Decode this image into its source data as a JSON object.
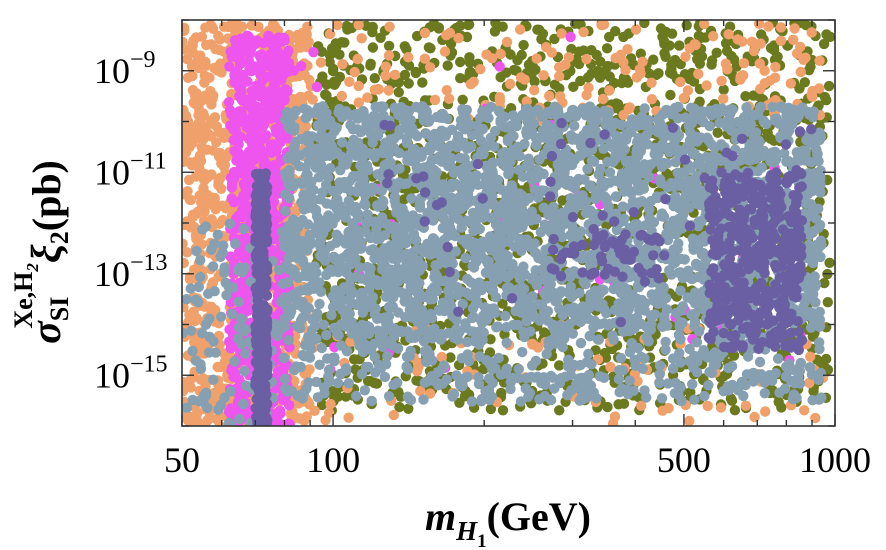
{
  "chart_data": {
    "type": "scatter",
    "title": "",
    "xlabel": {
      "main": "m",
      "sub": "H",
      "subsub": "1",
      "unit": "(GeV)"
    },
    "ylabel": {
      "main": "σ",
      "sub": "SI",
      "sup": "Xe,H",
      "supsub": "2",
      "factor": "ξ",
      "factor_sub": "2",
      "unit": "(pb)"
    },
    "x_scale": "log",
    "y_scale": "log",
    "xlim": [
      50,
      1000
    ],
    "ylim": [
      1e-16,
      1e-08
    ],
    "x_ticks": [
      {
        "value": 50,
        "label": "50"
      },
      {
        "value": 100,
        "label": "100"
      },
      {
        "value": 500,
        "label": "500"
      },
      {
        "value": 1000,
        "label": "1000"
      }
    ],
    "y_ticks": [
      {
        "value": 1e-09,
        "base": "10",
        "exp": "−9"
      },
      {
        "value": 1e-11,
        "base": "10",
        "exp": "−11"
      },
      {
        "value": 1e-13,
        "base": "10",
        "exp": "−13"
      },
      {
        "value": 1e-15,
        "base": "10",
        "exp": "−15"
      }
    ],
    "series": [
      {
        "name": "olive",
        "color": "#6b7a1e",
        "regions": [
          {
            "x": [
              92,
              980
            ],
            "y": [
              2e-16,
              9e-09
            ],
            "n": 1500
          }
        ]
      },
      {
        "name": "orange",
        "color": "#f0a06a",
        "regions": [
          {
            "x": [
              50,
              90
            ],
            "y": [
              1e-16,
              9e-09
            ],
            "n": 900
          },
          {
            "x": [
              90,
              950
            ],
            "y": [
              1e-10,
              9e-09
            ],
            "n": 160
          },
          {
            "x": [
              90,
              950
            ],
            "y": [
              1e-16,
              1e-14
            ],
            "n": 80
          }
        ]
      },
      {
        "name": "magenta",
        "color": "#ee55ee",
        "regions": [
          {
            "x": [
              62,
              82
            ],
            "y": [
              1e-16,
              5e-09
            ],
            "n": 700
          },
          {
            "x": [
              82,
              900
            ],
            "y": [
              1e-15,
              5e-09
            ],
            "n": 45
          }
        ]
      },
      {
        "name": "steel",
        "color": "#86a0b2",
        "regions": [
          {
            "x": [
              80,
              940
            ],
            "y": [
              6e-15,
              2e-10
            ],
            "n": 2600
          },
          {
            "x": [
              80,
              940
            ],
            "y": [
              3e-16,
              6e-15
            ],
            "n": 350
          },
          {
            "x": [
              50,
              80
            ],
            "y": [
              1e-16,
              1e-12
            ],
            "n": 120
          }
        ]
      },
      {
        "name": "purple",
        "color": "#6b5fa3",
        "regions": [
          {
            "x": [
              70,
              74
            ],
            "y": [
              1e-16,
              1e-11
            ],
            "n": 320
          },
          {
            "x": [
              560,
              860
            ],
            "y": [
              3e-15,
              1e-11
            ],
            "n": 420
          },
          {
            "x": [
              270,
              450
            ],
            "y": [
              8e-14,
              6e-13
            ],
            "n": 50
          },
          {
            "x": [
              120,
              900
            ],
            "y": [
              1e-14,
              1e-10
            ],
            "n": 55
          }
        ]
      }
    ]
  }
}
